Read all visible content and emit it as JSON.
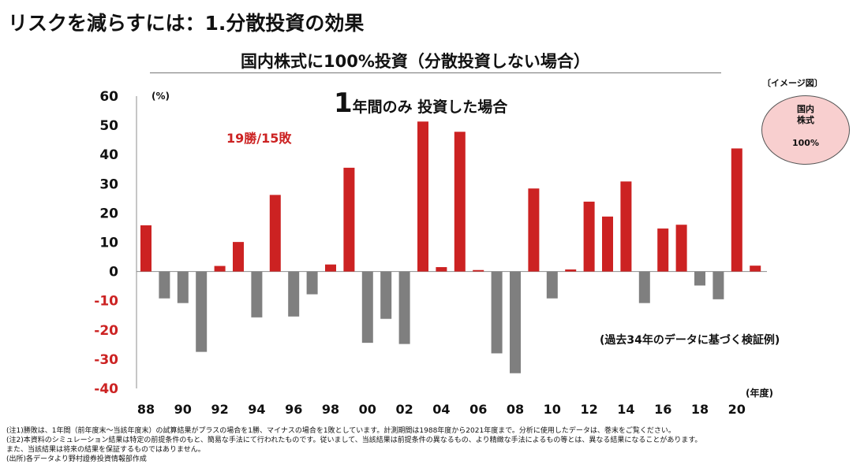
{
  "page_title": "リスクを減らすには：1.分散投資の効果",
  "image_tag": "〔イメージ図〕",
  "circle": {
    "line1": "国内",
    "line2": "株式",
    "line3": "100%"
  },
  "colors": {
    "win": "#cc2222",
    "loss": "#7f7f7f",
    "win_label": "#cc2222"
  },
  "notes": [
    "(注1)勝敗は、1年間（前年度末～当該年度末）の試算結果がプラスの場合を1勝、マイナスの場合を1敗としています。計測期間は1988年度から2021年度まで。分析に使用したデータは、巻末をご覧ください。",
    "(注2)本資料のシミュレーション結果は特定の前提条件のもと、簡易な手法にて行われたものです。従いまして、当該結果は前提条件の異なるもの、より精緻な手法によるもの等とは、異なる結果になることがあります。",
    "また、当該結果は将来の結果を保証するものではありません。",
    "(出所)各データより野村證券投資情報部作成"
  ],
  "chart_data": {
    "type": "bar",
    "title": "国内株式に100%投資（分散投資しない場合）",
    "headline_num": "1",
    "headline_text": "年間のみ 投資した場合",
    "win_loss": "19勝/15敗",
    "note": "(過去34年のデータに基づく検証例)",
    "ylabel": "(%)",
    "xlabel": "(年度)",
    "ylim": [
      -40,
      60
    ],
    "yticks": [
      60,
      50,
      40,
      30,
      20,
      10,
      0,
      -10,
      -20,
      -30,
      -40
    ],
    "xtick_labels": [
      "88",
      "90",
      "92",
      "94",
      "96",
      "98",
      "00",
      "02",
      "04",
      "06",
      "08",
      "10",
      "12",
      "14",
      "16",
      "18",
      "20"
    ],
    "categories": [
      "1988",
      "1989",
      "1990",
      "1991",
      "1992",
      "1993",
      "1994",
      "1995",
      "1996",
      "1997",
      "1998",
      "1999",
      "2000",
      "2001",
      "2002",
      "2003",
      "2004",
      "2005",
      "2006",
      "2007",
      "2008",
      "2009",
      "2010",
      "2011",
      "2012",
      "2013",
      "2014",
      "2015",
      "2016",
      "2017",
      "2018",
      "2019",
      "2020",
      "2021"
    ],
    "values": [
      15.8,
      -9.2,
      -10.8,
      -27.5,
      1.9,
      10.1,
      -15.7,
      26.2,
      -15.4,
      -7.8,
      2.4,
      35.5,
      -24.4,
      -16.2,
      -24.8,
      51.3,
      1.5,
      47.8,
      0.5,
      -28.0,
      -34.8,
      28.4,
      -9.2,
      0.7,
      23.9,
      18.8,
      30.8,
      -10.8,
      14.7,
      16.0,
      -4.8,
      -9.5,
      42.1,
      2.0
    ]
  }
}
